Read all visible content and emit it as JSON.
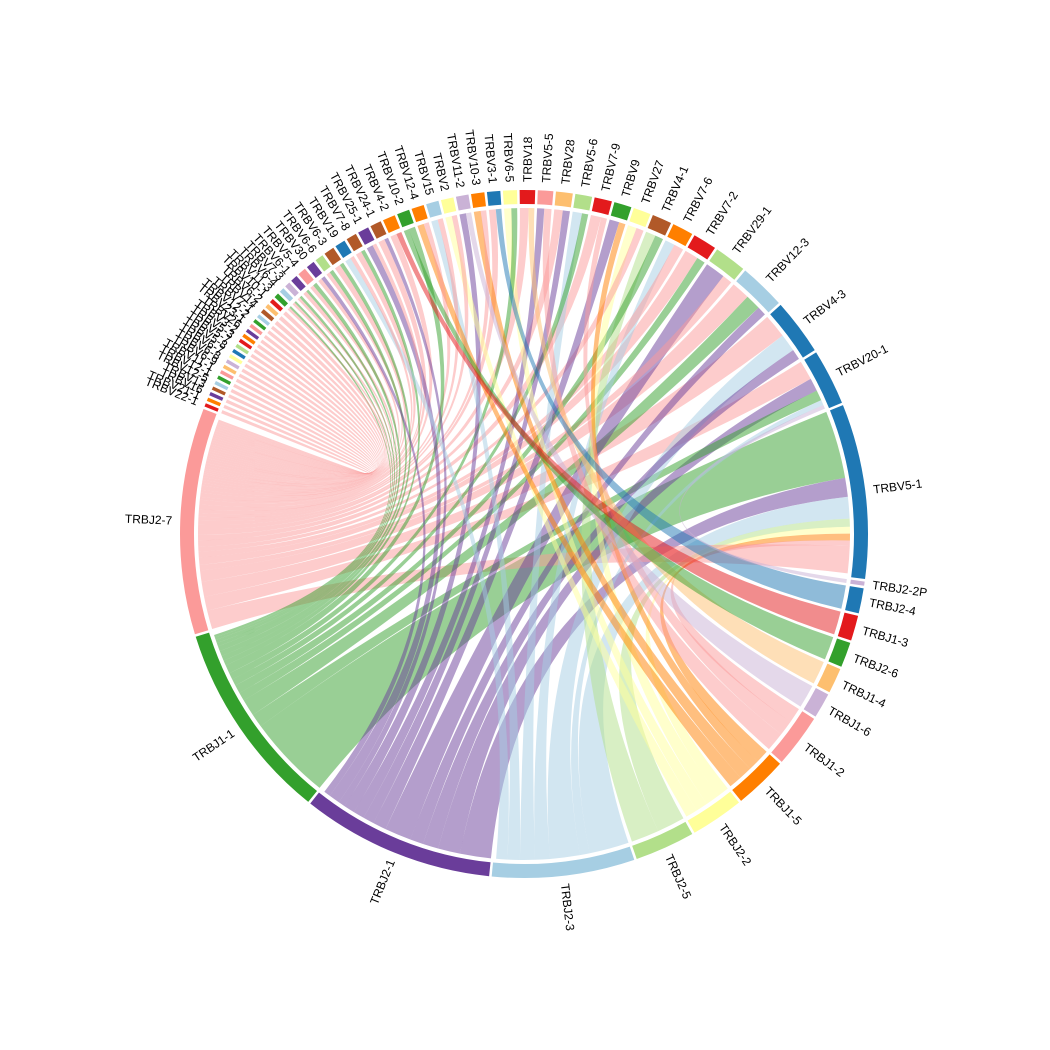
{
  "chart_data": {
    "type": "chord",
    "title": "",
    "sectors": [
      {
        "name": "TRBV5-1",
        "value": 12.5,
        "color": "#1f78b4"
      },
      {
        "name": "TRBJ2-2P",
        "value": 0.3,
        "color": "#cab2d6"
      },
      {
        "name": "TRBJ2-4",
        "value": 1.8,
        "color": "#1f78b4"
      },
      {
        "name": "TRBJ1-3",
        "value": 1.8,
        "color": "#e31a1c"
      },
      {
        "name": "TRBJ2-6",
        "value": 1.8,
        "color": "#33a02c"
      },
      {
        "name": "TRBJ1-4",
        "value": 1.8,
        "color": "#fdbf6f"
      },
      {
        "name": "TRBJ1-6",
        "value": 1.8,
        "color": "#cab2d6"
      },
      {
        "name": "TRBJ1-2",
        "value": 3.8,
        "color": "#fb9a99"
      },
      {
        "name": "TRBJ1-5",
        "value": 3.8,
        "color": "#ff7f00"
      },
      {
        "name": "TRBJ2-2",
        "value": 3.8,
        "color": "#ffff99"
      },
      {
        "name": "TRBJ2-5",
        "value": 4.3,
        "color": "#b2df8a"
      },
      {
        "name": "TRBJ2-3",
        "value": 10.2,
        "color": "#a6cee3"
      },
      {
        "name": "TRBJ2-1",
        "value": 13.8,
        "color": "#6a3d9a"
      },
      {
        "name": "TRBJ1-1",
        "value": 14.3,
        "color": "#33a02c"
      },
      {
        "name": "TRBJ2-7",
        "value": 16.2,
        "color": "#fb9a99"
      },
      {
        "name": "TRBV22-1",
        "value": 0.25,
        "color": "#e31a1c"
      },
      {
        "name": "TRBV21-1",
        "value": 0.25,
        "color": "#ff7f00"
      },
      {
        "name": "TRBV16",
        "value": 0.25,
        "color": "#6a3d9a"
      },
      {
        "name": "TRBV13",
        "value": 0.25,
        "color": "#b15928"
      },
      {
        "name": "TRBV12-5",
        "value": 0.25,
        "color": "#a6cee3"
      },
      {
        "name": "TRBV12-1",
        "value": 0.25,
        "color": "#33a02c"
      },
      {
        "name": "TRBV11-1",
        "value": 0.25,
        "color": "#fb9a99"
      },
      {
        "name": "TRBV6-9",
        "value": 0.25,
        "color": "#fdbf6f"
      },
      {
        "name": "TRBV6-8",
        "value": 0.25,
        "color": "#cab2d6"
      },
      {
        "name": "TRBV6-7",
        "value": 0.25,
        "color": "#ffff99"
      },
      {
        "name": "TRBV5-8",
        "value": 0.25,
        "color": "#1f78b4"
      },
      {
        "name": "TRBV5-7",
        "value": 0.25,
        "color": "#b2df8a"
      },
      {
        "name": "TRBV5-3",
        "value": 0.25,
        "color": "#e31a1c"
      },
      {
        "name": "TRBV3-2",
        "value": 0.25,
        "color": "#ff7f00"
      },
      {
        "name": "TRBV26",
        "value": 0.25,
        "color": "#6a3d9a"
      },
      {
        "name": "TRBV23-1",
        "value": 0.25,
        "color": "#fb9a99"
      },
      {
        "name": "TRBV12-2",
        "value": 0.25,
        "color": "#33a02c"
      },
      {
        "name": "TRBV7-1",
        "value": 0.25,
        "color": "#a6cee3"
      },
      {
        "name": "TRBV14",
        "value": 0.3,
        "color": "#b15928"
      },
      {
        "name": "TRBV6-2",
        "value": 0.3,
        "color": "#fdbf6f"
      },
      {
        "name": "TRBV10-1",
        "value": 0.3,
        "color": "#e31a1c"
      },
      {
        "name": "TRBV11-3",
        "value": 0.35,
        "color": "#33a02c"
      },
      {
        "name": "TRBV6-4",
        "value": 0.35,
        "color": "#a6cee3"
      },
      {
        "name": "TRBV7-3",
        "value": 0.4,
        "color": "#cab2d6"
      },
      {
        "name": "TRBV6-1",
        "value": 0.5,
        "color": "#6a3d9a"
      },
      {
        "name": "TRBV5-4",
        "value": 0.6,
        "color": "#fb9a99"
      },
      {
        "name": "TRBV30",
        "value": 0.6,
        "color": "#6a3d9a"
      },
      {
        "name": "TRBV6-6",
        "value": 0.6,
        "color": "#b2df8a"
      },
      {
        "name": "TRBV6-3",
        "value": 0.75,
        "color": "#b15928"
      },
      {
        "name": "TRBV19",
        "value": 0.75,
        "color": "#1f78b4"
      },
      {
        "name": "TRBV7-8",
        "value": 0.75,
        "color": "#b15928"
      },
      {
        "name": "TRBV25-1",
        "value": 0.8,
        "color": "#6a3d9a"
      },
      {
        "name": "TRBV24-1",
        "value": 0.8,
        "color": "#b15928"
      },
      {
        "name": "TRBV4-2",
        "value": 0.9,
        "color": "#ff7f00"
      },
      {
        "name": "TRBV10-2",
        "value": 0.9,
        "color": "#33a02c"
      },
      {
        "name": "TRBV12-4",
        "value": 0.9,
        "color": "#ff7f00"
      },
      {
        "name": "TRBV15",
        "value": 0.9,
        "color": "#a6cee3"
      },
      {
        "name": "TRBV2",
        "value": 0.9,
        "color": "#ffff99"
      },
      {
        "name": "TRBV11-2",
        "value": 0.9,
        "color": "#cab2d6"
      },
      {
        "name": "TRBV10-3",
        "value": 0.95,
        "color": "#ff7f00"
      },
      {
        "name": "TRBV3-1",
        "value": 0.95,
        "color": "#1f78b4"
      },
      {
        "name": "TRBV6-5",
        "value": 1.0,
        "color": "#ffff99"
      },
      {
        "name": "TRBV18",
        "value": 1.1,
        "color": "#e31a1c"
      },
      {
        "name": "TRBV5-5",
        "value": 1.1,
        "color": "#fb9a99"
      },
      {
        "name": "TRBV28",
        "value": 1.2,
        "color": "#fdbf6f"
      },
      {
        "name": "TRBV5-6",
        "value": 1.2,
        "color": "#b2df8a"
      },
      {
        "name": "TRBV7-9",
        "value": 1.25,
        "color": "#e31a1c"
      },
      {
        "name": "TRBV9",
        "value": 1.25,
        "color": "#33a02c"
      },
      {
        "name": "TRBV27",
        "value": 1.25,
        "color": "#ffff99"
      },
      {
        "name": "TRBV4-1",
        "value": 1.4,
        "color": "#b15928"
      },
      {
        "name": "TRBV7-6",
        "value": 1.5,
        "color": "#ff7f00"
      },
      {
        "name": "TRBV7-2",
        "value": 1.7,
        "color": "#e31a1c"
      },
      {
        "name": "TRBV29-1",
        "value": 2.3,
        "color": "#b2df8a"
      },
      {
        "name": "TRBV12-3",
        "value": 3.3,
        "color": "#a6cee3"
      },
      {
        "name": "TRBV4-3",
        "value": 4.0,
        "color": "#1f78b4"
      },
      {
        "name": "TRBV20-1",
        "value": 4.0,
        "color": "#1f78b4"
      }
    ],
    "links": [
      {
        "from": "TRBV5-1",
        "to": "TRBJ1-1",
        "value": 5.0
      },
      {
        "from": "TRBV5-1",
        "to": "TRBJ2-1",
        "value": 1.4
      },
      {
        "from": "TRBV5-1",
        "to": "TRBJ2-3",
        "value": 1.6
      },
      {
        "from": "TRBV5-1",
        "to": "TRBJ2-5",
        "value": 0.6
      },
      {
        "from": "TRBV5-1",
        "to": "TRBJ2-2",
        "value": 0.5
      },
      {
        "from": "TRBV5-1",
        "to": "TRBJ1-5",
        "value": 0.5
      },
      {
        "from": "TRBV5-1",
        "to": "TRBJ1-2",
        "value": 0.4
      },
      {
        "from": "TRBV5-1",
        "to": "TRBJ2-7",
        "value": 2.0
      },
      {
        "from": "TRBV20-1",
        "to": "TRBJ2-7",
        "value": 1.5
      },
      {
        "from": "TRBV20-1",
        "to": "TRBJ2-1",
        "value": 1.0
      },
      {
        "from": "TRBV20-1",
        "to": "TRBJ1-1",
        "value": 0.8
      },
      {
        "from": "TRBV20-1",
        "to": "TRBJ2-3",
        "value": 0.4
      },
      {
        "from": "TRBV4-3",
        "to": "TRBJ2-7",
        "value": 1.6
      },
      {
        "from": "TRBV4-3",
        "to": "TRBJ2-3",
        "value": 1.2
      },
      {
        "from": "TRBV4-3",
        "to": "TRBJ2-1",
        "value": 0.7
      },
      {
        "from": "TRBV12-3",
        "to": "TRBJ2-7",
        "value": 1.2
      },
      {
        "from": "TRBV12-3",
        "to": "TRBJ1-1",
        "value": 1.0
      },
      {
        "from": "TRBV12-3",
        "to": "TRBJ2-1",
        "value": 0.6
      },
      {
        "from": "TRBV29-1",
        "to": "TRBJ2-1",
        "value": 1.2
      },
      {
        "from": "TRBV29-1",
        "to": "TRBJ2-7",
        "value": 0.6
      },
      {
        "from": "TRBV7-2",
        "to": "TRBJ2-7",
        "value": 0.8
      },
      {
        "from": "TRBV7-2",
        "to": "TRBJ1-1",
        "value": 0.5
      },
      {
        "from": "TRBV7-6",
        "to": "TRBJ2-3",
        "value": 0.6
      },
      {
        "from": "TRBV7-6",
        "to": "TRBJ2-7",
        "value": 0.6
      },
      {
        "from": "TRBV4-1",
        "to": "TRBJ2-5",
        "value": 0.6
      },
      {
        "from": "TRBV4-1",
        "to": "TRBJ1-1",
        "value": 0.5
      },
      {
        "from": "TRBV27",
        "to": "TRBJ2-2",
        "value": 0.6
      },
      {
        "from": "TRBV27",
        "to": "TRBJ2-7",
        "value": 0.5
      },
      {
        "from": "TRBV9",
        "to": "TRBJ2-1",
        "value": 0.6
      },
      {
        "from": "TRBV9",
        "to": "TRBJ1-5",
        "value": 0.4
      },
      {
        "from": "TRBV7-9",
        "to": "TRBJ2-7",
        "value": 0.7
      },
      {
        "from": "TRBV7-9",
        "to": "TRBJ1-2",
        "value": 0.4
      },
      {
        "from": "TRBV5-6",
        "to": "TRBJ2-3",
        "value": 0.6
      },
      {
        "from": "TRBV5-6",
        "to": "TRBJ1-1",
        "value": 0.4
      },
      {
        "from": "TRBV28",
        "to": "TRBJ2-7",
        "value": 0.6
      },
      {
        "from": "TRBV28",
        "to": "TRBJ2-1",
        "value": 0.5
      },
      {
        "from": "TRBV5-5",
        "to": "TRBJ2-1",
        "value": 0.5
      },
      {
        "from": "TRBV5-5",
        "to": "TRBJ1-2",
        "value": 0.5
      },
      {
        "from": "TRBV18",
        "to": "TRBJ2-7",
        "value": 0.6
      },
      {
        "from": "TRBV18",
        "to": "TRBJ1-4",
        "value": 0.4
      },
      {
        "from": "TRBV6-5",
        "to": "TRBJ2-2",
        "value": 0.5
      },
      {
        "from": "TRBV6-5",
        "to": "TRBJ1-1",
        "value": 0.4
      },
      {
        "from": "TRBV3-1",
        "to": "TRBJ2-7",
        "value": 0.5
      },
      {
        "from": "TRBV3-1",
        "to": "TRBJ2-4",
        "value": 0.4
      },
      {
        "from": "TRBV10-3",
        "to": "TRBJ1-5",
        "value": 0.5
      },
      {
        "from": "TRBV10-3",
        "to": "TRBJ2-7",
        "value": 0.4
      },
      {
        "from": "TRBV11-2",
        "to": "TRBJ2-1",
        "value": 0.5
      },
      {
        "from": "TRBV11-2",
        "to": "TRBJ1-6",
        "value": 0.4
      },
      {
        "from": "TRBV2",
        "to": "TRBJ2-2",
        "value": 0.5
      },
      {
        "from": "TRBV2",
        "to": "TRBJ2-7",
        "value": 0.4
      },
      {
        "from": "TRBV15",
        "to": "TRBJ2-3",
        "value": 0.5
      },
      {
        "from": "TRBV15",
        "to": "TRBJ2-7",
        "value": 0.4
      },
      {
        "from": "TRBV12-4",
        "to": "TRBJ1-5",
        "value": 0.5
      },
      {
        "from": "TRBV12-4",
        "to": "TRBJ2-7",
        "value": 0.4
      },
      {
        "from": "TRBV10-2",
        "to": "TRBJ2-6",
        "value": 0.4
      },
      {
        "from": "TRBV10-2",
        "to": "TRBJ1-1",
        "value": 0.5
      },
      {
        "from": "TRBV4-2",
        "to": "TRBJ2-7",
        "value": 0.5
      },
      {
        "from": "TRBV4-2",
        "to": "TRBJ1-3",
        "value": 0.4
      },
      {
        "from": "TRBV24-1",
        "to": "TRBJ2-7",
        "value": 0.5
      },
      {
        "from": "TRBV24-1",
        "to": "TRBJ2-1",
        "value": 0.3
      },
      {
        "from": "TRBV25-1",
        "to": "TRBJ2-1",
        "value": 0.5
      },
      {
        "from": "TRBV25-1",
        "to": "TRBJ2-7",
        "value": 0.3
      },
      {
        "from": "TRBV7-8",
        "to": "TRBJ2-7",
        "value": 0.45
      },
      {
        "from": "TRBV7-8",
        "to": "TRBJ1-1",
        "value": 0.3
      },
      {
        "from": "TRBV19",
        "to": "TRBJ2-3",
        "value": 0.45
      },
      {
        "from": "TRBV19",
        "to": "TRBJ2-7",
        "value": 0.3
      },
      {
        "from": "TRBV6-3",
        "to": "TRBJ2-7",
        "value": 0.45
      },
      {
        "from": "TRBV6-3",
        "to": "TRBJ1-1",
        "value": 0.3
      },
      {
        "from": "TRBV6-6",
        "to": "TRBJ2-7",
        "value": 0.3
      },
      {
        "from": "TRBV6-6",
        "to": "TRBJ1-1",
        "value": 0.3
      },
      {
        "from": "TRBV30",
        "to": "TRBJ2-7",
        "value": 0.3
      },
      {
        "from": "TRBV30",
        "to": "TRBJ2-1",
        "value": 0.3
      },
      {
        "from": "TRBV5-4",
        "to": "TRBJ2-7",
        "value": 0.3
      },
      {
        "from": "TRBV5-4",
        "to": "TRBJ1-1",
        "value": 0.3
      },
      {
        "from": "TRBV6-1",
        "to": "TRBJ2-7",
        "value": 0.3
      },
      {
        "from": "TRBV6-1",
        "to": "TRBJ1-1",
        "value": 0.2
      },
      {
        "from": "TRBV7-3",
        "to": "TRBJ2-7",
        "value": 0.2
      },
      {
        "from": "TRBV7-3",
        "to": "TRBJ1-1",
        "value": 0.2
      },
      {
        "from": "TRBV6-4",
        "to": "TRBJ2-7",
        "value": 0.2
      },
      {
        "from": "TRBV6-4",
        "to": "TRBJ1-1",
        "value": 0.15
      },
      {
        "from": "TRBV11-3",
        "to": "TRBJ2-7",
        "value": 0.2
      },
      {
        "from": "TRBV11-3",
        "to": "TRBJ1-1",
        "value": 0.15
      },
      {
        "from": "TRBV10-1",
        "to": "TRBJ2-7",
        "value": 0.3
      },
      {
        "from": "TRBV6-2",
        "to": "TRBJ2-7",
        "value": 0.3
      },
      {
        "from": "TRBV14",
        "to": "TRBJ2-7",
        "value": 0.3
      },
      {
        "from": "TRBV7-1",
        "to": "TRBJ2-7",
        "value": 0.25
      },
      {
        "from": "TRBV12-2",
        "to": "TRBJ2-7",
        "value": 0.25
      },
      {
        "from": "TRBV23-1",
        "to": "TRBJ2-7",
        "value": 0.25
      },
      {
        "from": "TRBV26",
        "to": "TRBJ2-7",
        "value": 0.25
      },
      {
        "from": "TRBV3-2",
        "to": "TRBJ2-7",
        "value": 0.25
      },
      {
        "from": "TRBV5-3",
        "to": "TRBJ2-7",
        "value": 0.25
      },
      {
        "from": "TRBV5-7",
        "to": "TRBJ2-7",
        "value": 0.25
      },
      {
        "from": "TRBV5-8",
        "to": "TRBJ2-7",
        "value": 0.25
      },
      {
        "from": "TRBV6-7",
        "to": "TRBJ2-7",
        "value": 0.25
      },
      {
        "from": "TRBV6-8",
        "to": "TRBJ2-7",
        "value": 0.25
      },
      {
        "from": "TRBV6-9",
        "to": "TRBJ2-7",
        "value": 0.25
      },
      {
        "from": "TRBV11-1",
        "to": "TRBJ2-7",
        "value": 0.25
      },
      {
        "from": "TRBV12-1",
        "to": "TRBJ2-7",
        "value": 0.25
      },
      {
        "from": "TRBV12-5",
        "to": "TRBJ2-7",
        "value": 0.25
      },
      {
        "from": "TRBV13",
        "to": "TRBJ2-7",
        "value": 0.25
      },
      {
        "from": "TRBV16",
        "to": "TRBJ2-7",
        "value": 0.25
      },
      {
        "from": "TRBV21-1",
        "to": "TRBJ2-7",
        "value": 0.25
      },
      {
        "from": "TRBV22-1",
        "to": "TRBJ2-7",
        "value": 0.25
      },
      {
        "from": "TRBV20-1",
        "to": "TRBJ2-2P",
        "value": 0.3
      }
    ]
  }
}
